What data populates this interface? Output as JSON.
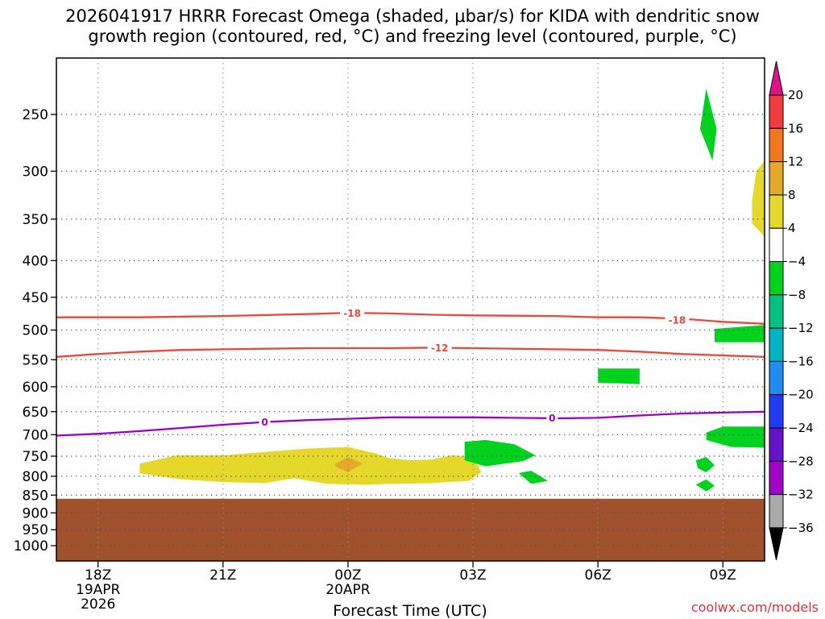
{
  "chart_data": {
    "type": "heatmap",
    "title_line1": "2026041917 HRRR Forecast Omega (shaded, μbar/s) for KIDA with dendritic snow",
    "title_line2": "growth region (contoured, red, °C) and freezing level (contoured, purple, °C)",
    "xlabel": "Forecast Time (UTC)",
    "credit": "coolwx.com/models",
    "x_range_hours": [
      -1.0,
      16.0
    ],
    "x_ticks": [
      {
        "hour": 0,
        "label": "18Z",
        "sub1": "19APR",
        "sub2": "2026"
      },
      {
        "hour": 3,
        "label": "21Z",
        "sub1": "",
        "sub2": ""
      },
      {
        "hour": 6,
        "label": "00Z",
        "sub1": "20APR",
        "sub2": ""
      },
      {
        "hour": 9,
        "label": "03Z",
        "sub1": "",
        "sub2": ""
      },
      {
        "hour": 12,
        "label": "06Z",
        "sub1": "",
        "sub2": ""
      },
      {
        "hour": 15,
        "label": "09Z",
        "sub1": "",
        "sub2": ""
      }
    ],
    "y_ticks": [
      {
        "p": 250,
        "label": "250"
      },
      {
        "p": 300,
        "label": "300"
      },
      {
        "p": 350,
        "label": "350"
      },
      {
        "p": 400,
        "label": "400"
      },
      {
        "p": 450,
        "label": "450"
      },
      {
        "p": 500,
        "label": "500"
      },
      {
        "p": 550,
        "label": "550"
      },
      {
        "p": 600,
        "label": "600"
      },
      {
        "p": 650,
        "label": "650"
      },
      {
        "p": 700,
        "label": "700"
      },
      {
        "p": 750,
        "label": "750"
      },
      {
        "p": 800,
        "label": "800"
      },
      {
        "p": 850,
        "label": "850"
      },
      {
        "p": 900,
        "label": "900"
      },
      {
        "p": 950,
        "label": "950"
      },
      {
        "p": 1000,
        "label": "1000"
      }
    ],
    "y_range_hpa": [
      200,
      1050
    ],
    "ground_top_hpa": 860,
    "colors": {
      "ground": "#a0522d",
      "isotherm": "#e8483c",
      "freezing": "#9b00c8",
      "grid": "#555555"
    },
    "isotherms": [
      {
        "label": "-18",
        "label_at": [
          6.1,
          474
        ],
        "points": [
          [
            -1,
            480
          ],
          [
            1,
            480
          ],
          [
            3,
            478
          ],
          [
            5,
            475
          ],
          [
            6,
            473
          ],
          [
            7,
            474
          ],
          [
            8,
            476
          ],
          [
            9,
            477
          ],
          [
            11,
            478
          ],
          [
            12,
            480
          ],
          [
            13,
            480
          ],
          [
            14,
            482
          ],
          [
            15,
            487
          ],
          [
            16,
            490
          ]
        ]
      },
      {
        "label": "-12",
        "label_at": [
          8.2,
          530
        ],
        "points": [
          [
            -1,
            545
          ],
          [
            0,
            540
          ],
          [
            1,
            536
          ],
          [
            2,
            533
          ],
          [
            3,
            532
          ],
          [
            4,
            531
          ],
          [
            5,
            530
          ],
          [
            6,
            530
          ],
          [
            7,
            530
          ],
          [
            8,
            529
          ],
          [
            9,
            530
          ],
          [
            10,
            531
          ],
          [
            11,
            532
          ],
          [
            12,
            533
          ],
          [
            13,
            536
          ],
          [
            14,
            540
          ],
          [
            16,
            545
          ]
        ]
      }
    ],
    "isotherm_label_2": {
      "label": "-18",
      "at": [
        13.9,
        485
      ]
    },
    "freezing_level": {
      "label": "0",
      "label_at": [
        4.0,
        673
      ],
      "label2_at": [
        10.9,
        664
      ],
      "points": [
        [
          -1,
          702
        ],
        [
          0,
          698
        ],
        [
          1,
          692
        ],
        [
          2,
          685
        ],
        [
          3,
          678
        ],
        [
          4,
          672
        ],
        [
          5,
          668
        ],
        [
          6,
          665
        ],
        [
          7,
          662
        ],
        [
          8,
          662
        ],
        [
          9,
          662
        ],
        [
          10,
          663
        ],
        [
          11,
          664
        ],
        [
          12,
          663
        ],
        [
          13,
          658
        ],
        [
          14,
          654
        ],
        [
          15,
          652
        ],
        [
          16,
          650
        ]
      ]
    },
    "colorbar": {
      "ticks": [
        "20",
        "16",
        "12",
        "8",
        "4",
        "−4",
        "−8",
        "−12",
        "−16",
        "−20",
        "−24",
        "−28",
        "−32",
        "−36"
      ],
      "bins": [
        "#dd1188",
        "#f03c3c",
        "#f07820",
        "#e6a82a",
        "#e6d82a",
        "#ffffff",
        "#00d21e",
        "#00c382",
        "#00b4c3",
        "#1e8cf0",
        "#1e3cf0",
        "#6414c8",
        "#a000c8",
        "#aaaaaa",
        "#000000"
      ]
    },
    "shaded_regions": [
      {
        "value_range": [
          4,
          8
        ],
        "color": "#e6d82a",
        "label": "yellow",
        "points": [
          [
            1,
            768
          ],
          [
            1.9,
            748
          ],
          [
            3,
            748
          ],
          [
            4,
            740
          ],
          [
            5,
            732
          ],
          [
            6,
            728
          ],
          [
            6.6,
            742
          ],
          [
            7,
            755
          ],
          [
            7.5,
            760
          ],
          [
            8,
            758
          ],
          [
            8.5,
            748
          ],
          [
            9,
            752
          ],
          [
            9.2,
            790
          ],
          [
            8.9,
            812
          ],
          [
            8,
            818
          ],
          [
            7,
            820
          ],
          [
            6.4,
            822
          ],
          [
            5.5,
            820
          ],
          [
            4.7,
            805
          ],
          [
            4,
            818
          ],
          [
            3,
            815
          ],
          [
            2,
            808
          ],
          [
            1,
            793
          ]
        ]
      },
      {
        "value_range": [
          4,
          8
        ],
        "color": "#e6d82a",
        "label": "yellow-right-edge",
        "points": [
          [
            16,
            290
          ],
          [
            15.8,
            300
          ],
          [
            15.7,
            330
          ],
          [
            15.7,
            355
          ],
          [
            16,
            370
          ]
        ]
      },
      {
        "value_range": [
          8,
          12
        ],
        "color": "#e6a82a",
        "label": "orange",
        "points": [
          [
            5.7,
            768
          ],
          [
            6.0,
            752
          ],
          [
            6.35,
            768
          ],
          [
            6.0,
            790
          ],
          [
            5.7,
            775
          ]
        ]
      },
      {
        "value_range": [
          -8,
          -4
        ],
        "color": "#00d21e",
        "label": "green-1",
        "points": [
          [
            14.6,
            230
          ],
          [
            14.85,
            262
          ],
          [
            14.75,
            290
          ],
          [
            14.45,
            262
          ]
        ]
      },
      {
        "value_range": [
          -8,
          -4
        ],
        "color": "#00d21e",
        "label": "green-2",
        "points": [
          [
            12.0,
            566
          ],
          [
            13.0,
            566
          ],
          [
            13.0,
            595
          ],
          [
            12.0,
            592
          ]
        ]
      },
      {
        "value_range": [
          -8,
          -4
        ],
        "color": "#00d21e",
        "label": "green-3",
        "points": [
          [
            14.8,
            498
          ],
          [
            16,
            492
          ],
          [
            16,
            520
          ],
          [
            14.8,
            520
          ]
        ]
      },
      {
        "value_range": [
          -8,
          -4
        ],
        "color": "#00d21e",
        "label": "green-4",
        "points": [
          [
            14.6,
            695
          ],
          [
            15.0,
            682
          ],
          [
            16,
            682
          ],
          [
            16,
            730
          ],
          [
            15.2,
            728
          ],
          [
            14.6,
            712
          ]
        ]
      },
      {
        "value_range": [
          -8,
          -4
        ],
        "color": "#00d21e",
        "label": "green-5",
        "points": [
          [
            8.8,
            716
          ],
          [
            9.3,
            712
          ],
          [
            10.0,
            722
          ],
          [
            10.5,
            748
          ],
          [
            10.2,
            762
          ],
          [
            9.3,
            775
          ],
          [
            8.8,
            760
          ]
        ]
      },
      {
        "value_range": [
          -8,
          -4
        ],
        "color": "#00d21e",
        "label": "green-6",
        "points": [
          [
            10.1,
            792
          ],
          [
            10.4,
            786
          ],
          [
            10.8,
            812
          ],
          [
            10.4,
            820
          ]
        ]
      },
      {
        "value_range": [
          -8,
          -4
        ],
        "color": "#00d21e",
        "label": "green-7",
        "points": [
          [
            14.35,
            760
          ],
          [
            14.6,
            752
          ],
          [
            14.8,
            772
          ],
          [
            14.6,
            790
          ],
          [
            14.4,
            780
          ]
        ]
      },
      {
        "value_range": [
          -8,
          -4
        ],
        "color": "#00d21e",
        "label": "green-8",
        "points": [
          [
            14.35,
            822
          ],
          [
            14.6,
            808
          ],
          [
            14.8,
            825
          ],
          [
            14.6,
            840
          ]
        ]
      }
    ]
  }
}
